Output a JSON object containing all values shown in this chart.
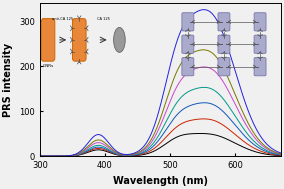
{
  "xlabel": "Wavelength (nm)",
  "ylabel": "PRS intensity",
  "xlim": [
    300,
    670
  ],
  "ylim": [
    0,
    340
  ],
  "yticks": [
    0,
    100,
    200,
    300
  ],
  "xticks": [
    300,
    400,
    500,
    600
  ],
  "background_color": "#f0f0f0",
  "curves": [
    {
      "color": "#000000",
      "p1x": 390,
      "p1y": 14,
      "p1w": 16,
      "p2x": 510,
      "p2y": 20,
      "p2w": 22,
      "p3x": 560,
      "p3y": 48,
      "p3w": 40
    },
    {
      "color": "#cc2200",
      "p1x": 390,
      "p1y": 17,
      "p1w": 16,
      "p2x": 510,
      "p2y": 28,
      "p2w": 22,
      "p3x": 560,
      "p3y": 80,
      "p3w": 40
    },
    {
      "color": "#1155bb",
      "p1x": 390,
      "p1y": 20,
      "p1w": 16,
      "p2x": 510,
      "p2y": 38,
      "p2w": 22,
      "p3x": 560,
      "p3y": 115,
      "p3w": 40
    },
    {
      "color": "#009988",
      "p1x": 390,
      "p1y": 24,
      "p1w": 16,
      "p2x": 510,
      "p2y": 50,
      "p2w": 22,
      "p3x": 560,
      "p3y": 148,
      "p3w": 40
    },
    {
      "color": "#cc44cc",
      "p1x": 390,
      "p1y": 30,
      "p1w": 16,
      "p2x": 510,
      "p2y": 65,
      "p2w": 22,
      "p3x": 560,
      "p3y": 192,
      "p3w": 40
    },
    {
      "color": "#777700",
      "p1x": 390,
      "p1y": 36,
      "p1w": 16,
      "p2x": 510,
      "p2y": 82,
      "p2w": 22,
      "p3x": 560,
      "p3y": 228,
      "p3w": 40
    },
    {
      "color": "#2222dd",
      "p1x": 390,
      "p1y": 48,
      "p1w": 16,
      "p2x": 510,
      "p2y": 108,
      "p2w": 22,
      "p3x": 560,
      "p3y": 315,
      "p3w": 40
    }
  ],
  "inset_left": {
    "rod_color": "#E8873A",
    "rod_edge": "#cc6600",
    "antibody_color": "#555555",
    "arrow_color": "#333333",
    "ca125_color": "#999999",
    "ca125_edge": "#666666"
  },
  "inset_right": {
    "rod_fill": "#aaaacc",
    "rod_edge": "#7777aa",
    "linker_color": "#555555",
    "connector_color": "#888888"
  }
}
